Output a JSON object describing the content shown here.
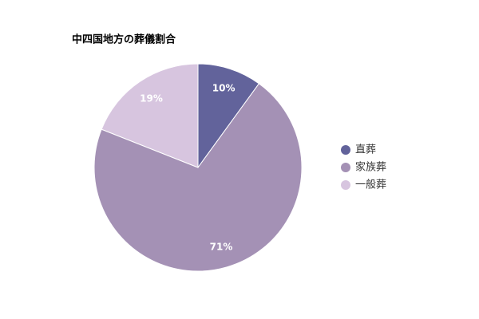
{
  "chart_data": {
    "type": "pie",
    "title": "中四国地方の葬儀割合",
    "categories": [
      "直葬",
      "家族葬",
      "一般葬"
    ],
    "values": [
      10,
      71,
      19
    ],
    "value_labels": [
      "10%",
      "71%",
      "19%"
    ],
    "colors": [
      "#62639b",
      "#a491b5",
      "#d7c5df"
    ],
    "legend": "right"
  }
}
